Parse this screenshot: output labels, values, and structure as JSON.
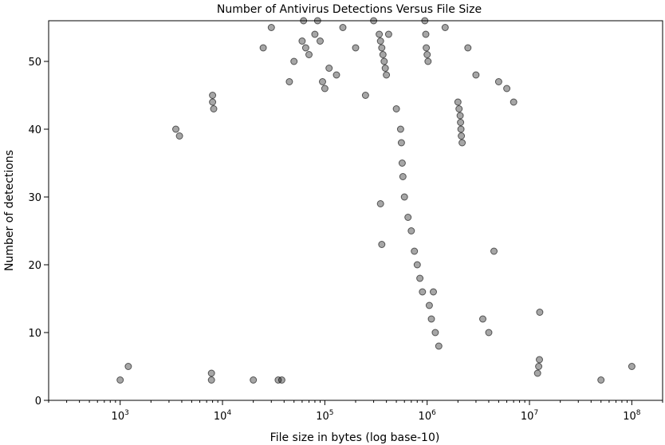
{
  "chart_data": {
    "type": "scatter",
    "title": "Number of Antivirus Detections Versus File Size",
    "xlabel": "File size in bytes (log base-10)",
    "ylabel": "Number of detections",
    "x_scale": "log",
    "xlim": [
      200,
      200000000
    ],
    "ylim": [
      0,
      56
    ],
    "x_ticks": [
      {
        "value": 1000,
        "base": "10",
        "exp": "3"
      },
      {
        "value": 10000,
        "base": "10",
        "exp": "4"
      },
      {
        "value": 100000,
        "base": "10",
        "exp": "5"
      },
      {
        "value": 1000000,
        "base": "10",
        "exp": "6"
      },
      {
        "value": 10000000,
        "base": "10",
        "exp": "7"
      },
      {
        "value": 100000000,
        "base": "10",
        "exp": "8"
      }
    ],
    "y_ticks": [
      {
        "value": 0,
        "label": "0"
      },
      {
        "value": 10,
        "label": "10"
      },
      {
        "value": 20,
        "label": "20"
      },
      {
        "value": 30,
        "label": "30"
      },
      {
        "value": 40,
        "label": "40"
      },
      {
        "value": 50,
        "label": "50"
      }
    ],
    "grid": false,
    "marker_color": "#000000",
    "marker_alpha": 0.05,
    "points": [
      {
        "x": 1000,
        "y": 3
      },
      {
        "x": 1200,
        "y": 5
      },
      {
        "x": 3500,
        "y": 40
      },
      {
        "x": 3800,
        "y": 39
      },
      {
        "x": 7800,
        "y": 3
      },
      {
        "x": 7800,
        "y": 4
      },
      {
        "x": 8000,
        "y": 44
      },
      {
        "x": 8000,
        "y": 45
      },
      {
        "x": 8200,
        "y": 43
      },
      {
        "x": 20000,
        "y": 3
      },
      {
        "x": 25000,
        "y": 52
      },
      {
        "x": 30000,
        "y": 55
      },
      {
        "x": 35000,
        "y": 3
      },
      {
        "x": 38000,
        "y": 3
      },
      {
        "x": 45000,
        "y": 47
      },
      {
        "x": 50000,
        "y": 50
      },
      {
        "x": 60000,
        "y": 53
      },
      {
        "x": 62000,
        "y": 56
      },
      {
        "x": 65000,
        "y": 52
      },
      {
        "x": 70000,
        "y": 51
      },
      {
        "x": 80000,
        "y": 54
      },
      {
        "x": 85000,
        "y": 56
      },
      {
        "x": 90000,
        "y": 53
      },
      {
        "x": 95000,
        "y": 47
      },
      {
        "x": 100000,
        "y": 46
      },
      {
        "x": 110000,
        "y": 49
      },
      {
        "x": 130000,
        "y": 48
      },
      {
        "x": 150000,
        "y": 55
      },
      {
        "x": 200000,
        "y": 52
      },
      {
        "x": 250000,
        "y": 45
      },
      {
        "x": 300000,
        "y": 56
      },
      {
        "x": 340000,
        "y": 54
      },
      {
        "x": 350000,
        "y": 53
      },
      {
        "x": 360000,
        "y": 52
      },
      {
        "x": 370000,
        "y": 51
      },
      {
        "x": 380000,
        "y": 50
      },
      {
        "x": 390000,
        "y": 49
      },
      {
        "x": 400000,
        "y": 48
      },
      {
        "x": 420000,
        "y": 54
      },
      {
        "x": 350000,
        "y": 29
      },
      {
        "x": 360000,
        "y": 23
      },
      {
        "x": 500000,
        "y": 43
      },
      {
        "x": 550000,
        "y": 40
      },
      {
        "x": 560000,
        "y": 38
      },
      {
        "x": 570000,
        "y": 35
      },
      {
        "x": 580000,
        "y": 33
      },
      {
        "x": 600000,
        "y": 30
      },
      {
        "x": 650000,
        "y": 27
      },
      {
        "x": 700000,
        "y": 25
      },
      {
        "x": 750000,
        "y": 22
      },
      {
        "x": 800000,
        "y": 20
      },
      {
        "x": 850000,
        "y": 18
      },
      {
        "x": 900000,
        "y": 16
      },
      {
        "x": 950000,
        "y": 56
      },
      {
        "x": 970000,
        "y": 54
      },
      {
        "x": 980000,
        "y": 52
      },
      {
        "x": 1000000,
        "y": 51
      },
      {
        "x": 1020000,
        "y": 50
      },
      {
        "x": 1050000,
        "y": 14
      },
      {
        "x": 1100000,
        "y": 12
      },
      {
        "x": 1150000,
        "y": 16
      },
      {
        "x": 1200000,
        "y": 10
      },
      {
        "x": 1300000,
        "y": 8
      },
      {
        "x": 1500000,
        "y": 55
      },
      {
        "x": 2000000,
        "y": 44
      },
      {
        "x": 2050000,
        "y": 43
      },
      {
        "x": 2100000,
        "y": 42
      },
      {
        "x": 2120000,
        "y": 41
      },
      {
        "x": 2140000,
        "y": 40
      },
      {
        "x": 2160000,
        "y": 39
      },
      {
        "x": 2200000,
        "y": 38
      },
      {
        "x": 2500000,
        "y": 52
      },
      {
        "x": 3000000,
        "y": 48
      },
      {
        "x": 3500000,
        "y": 12
      },
      {
        "x": 4000000,
        "y": 10
      },
      {
        "x": 4500000,
        "y": 22
      },
      {
        "x": 5000000,
        "y": 47
      },
      {
        "x": 6000000,
        "y": 46
      },
      {
        "x": 7000000,
        "y": 44
      },
      {
        "x": 12000000,
        "y": 4
      },
      {
        "x": 12300000,
        "y": 5
      },
      {
        "x": 12500000,
        "y": 6
      },
      {
        "x": 12600000,
        "y": 13
      },
      {
        "x": 50000000,
        "y": 3
      },
      {
        "x": 100000000,
        "y": 5
      }
    ]
  }
}
